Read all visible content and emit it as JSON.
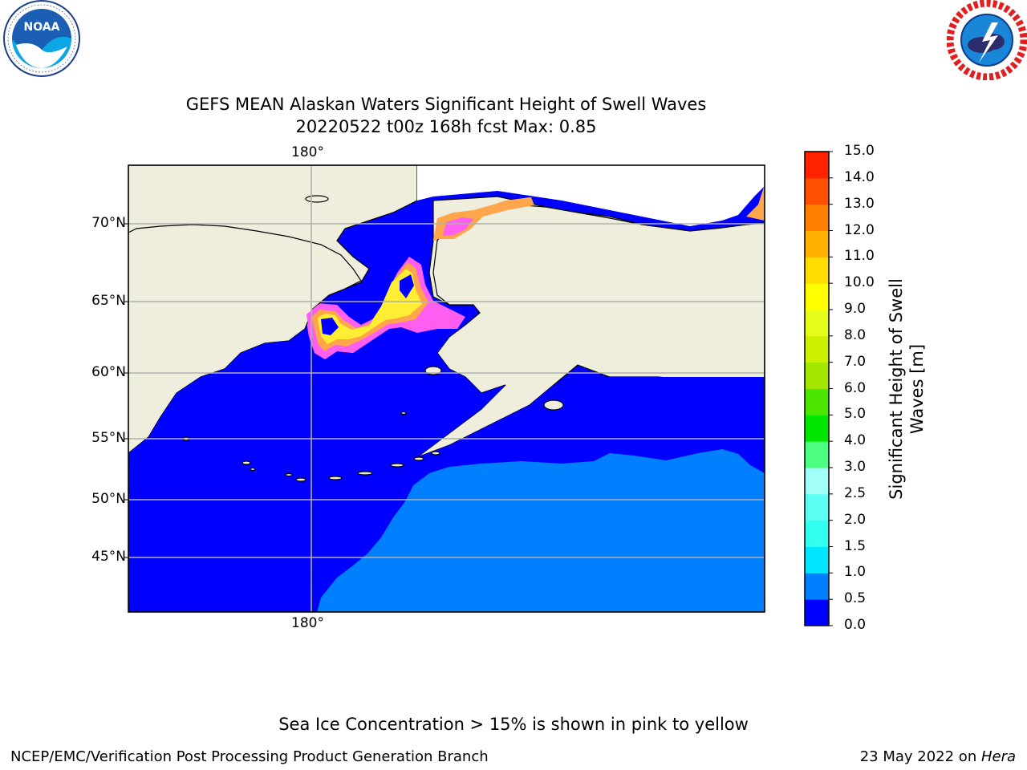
{
  "title": {
    "line1": "GEFS MEAN Alaskan Waters Significant Height of Swell Waves",
    "line2": "20220522 t00z 168h fcst   Max: 0.85"
  },
  "logos": {
    "left": "noaa-logo",
    "right": "nws-logo",
    "left_text": "NOAA"
  },
  "map": {
    "lon_label": "180°",
    "lat_labels": [
      "70°N",
      "65°N",
      "60°N",
      "55°N",
      "50°N",
      "45°N"
    ],
    "colors": {
      "land": "#efeedc",
      "ocean_low": "#0000fe",
      "ocean_mid": "#0080ff",
      "ice_pink": "#ff5ff1",
      "ice_orange": "#ffa64d",
      "ice_yellow": "#ffee33",
      "grid": "#b0b0b0"
    }
  },
  "colorbar": {
    "label": "Significant Height of Swell Waves [m]",
    "ticks": [
      "0.0",
      "0.5",
      "1.0",
      "1.5",
      "2.0",
      "2.5",
      "3.0",
      "4.0",
      "5.0",
      "6.0",
      "7.0",
      "8.0",
      "9.0",
      "10.0",
      "11.0",
      "12.0",
      "13.0",
      "14.0",
      "15.0"
    ],
    "colors": [
      "#0000ff",
      "#0080ff",
      "#00e5ff",
      "#33ffee",
      "#5cfff4",
      "#a1fff7",
      "#4dff80",
      "#00e600",
      "#4ce600",
      "#a3e600",
      "#ccf000",
      "#e6ff1a",
      "#ffff00",
      "#ffdd00",
      "#ffb000",
      "#ff8000",
      "#ff5000",
      "#ff2200"
    ]
  },
  "footer": {
    "note": "Sea Ice Concentration > 15% is shown in pink to yellow",
    "left": "NCEP/EMC/Verification Post Processing Product Generation Branch",
    "right_date": "23 May 2022 on ",
    "right_machine": "Hera"
  }
}
